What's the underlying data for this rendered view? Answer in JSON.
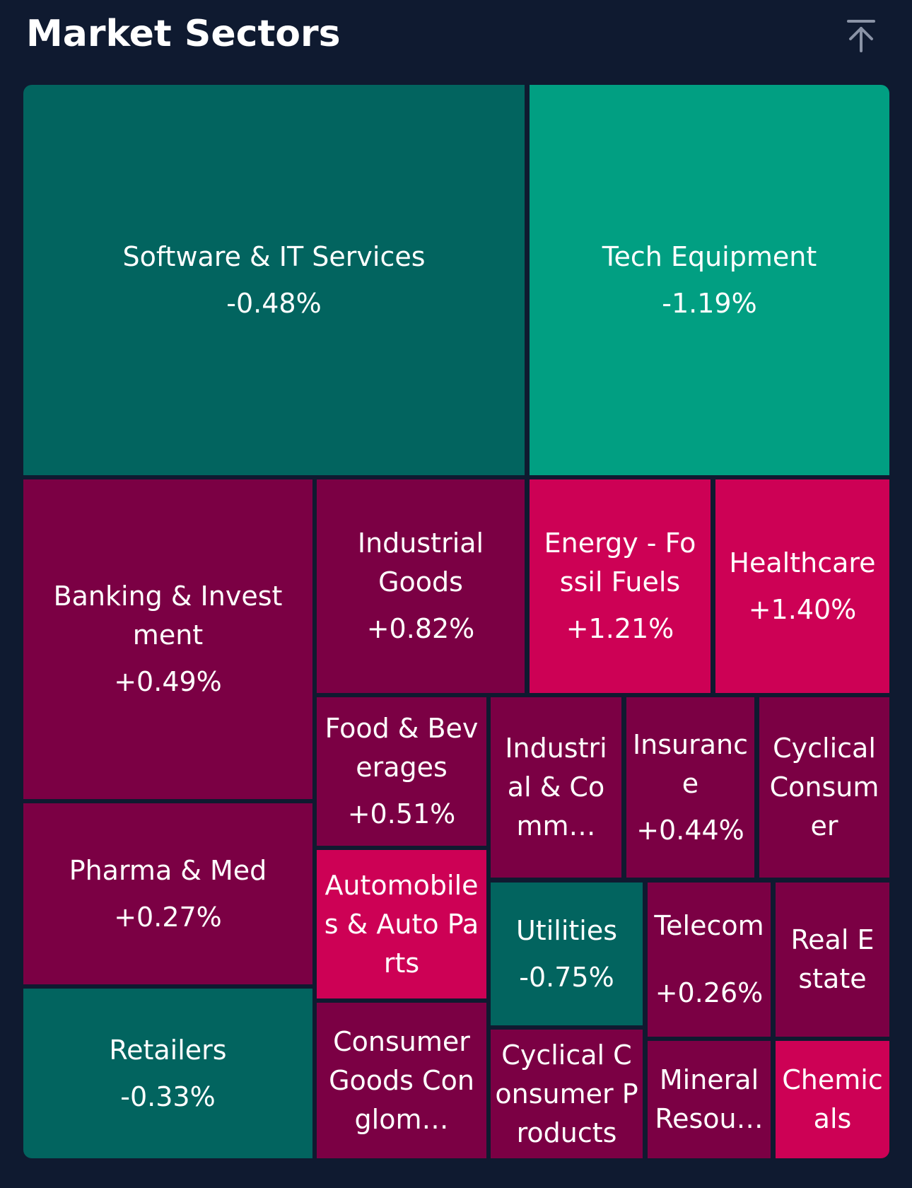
{
  "header": {
    "title": "Market Sectors",
    "scroll_top_icon": "arrow-up-to-top-icon"
  },
  "colors": {
    "background": "#0f1a30",
    "dark_teal": "#02645f",
    "teal": "#019f82",
    "maroon": "#7b0044",
    "pink": "#cd0155"
  },
  "sectors": [
    {
      "label": "Software & IT Services",
      "change": "-0.48%"
    },
    {
      "label": "Tech Equipment",
      "change": "-1.19%"
    },
    {
      "label": "Banking & Investment",
      "change": "+0.49%"
    },
    {
      "label": "Industrial Goods",
      "change": "+0.82%"
    },
    {
      "label": "Energy - Fossil Fuels",
      "change": "+1.21%"
    },
    {
      "label": "Healthcare",
      "change": "+1.40%"
    },
    {
      "label": "Food & Beverages",
      "change": "+0.51%"
    },
    {
      "label": "Industrial & Comm…",
      "change": ""
    },
    {
      "label": "Insurance",
      "change": "+0.44%"
    },
    {
      "label": "Cyclical Consumer",
      "change": ""
    },
    {
      "label": "Pharma & Med",
      "change": "+0.27%"
    },
    {
      "label": "Automobiles & Auto Parts",
      "change": ""
    },
    {
      "label": "Utilities",
      "change": "-0.75%"
    },
    {
      "label": "Telecom",
      "change": "+0.26%"
    },
    {
      "label": "Real Estate",
      "change": ""
    },
    {
      "label": "Retailers",
      "change": "-0.33%"
    },
    {
      "label": "Consumer Goods Conglom…",
      "change": ""
    },
    {
      "label": "Cyclical Consumer Products",
      "change": ""
    },
    {
      "label": "Mineral Resou…",
      "change": ""
    },
    {
      "label": "Chemicals",
      "change": ""
    }
  ]
}
